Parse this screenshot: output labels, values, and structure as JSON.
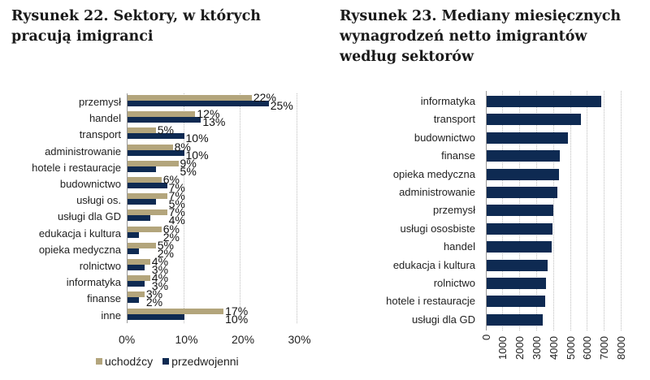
{
  "titles": {
    "left": "Rysunek 22. Sektory, w których pracują imigranci",
    "right": "Rysunek 23. Mediany miesięcznych wynagrodzeń netto imigrantów według sektorów"
  },
  "colors": {
    "uchodzcy": "#b3a57c",
    "przedwojenni": "#0e2a52",
    "right_bar": "#0e2a52",
    "grid": "#bdbdbd"
  },
  "legend": {
    "series1": "uchodźcy",
    "series2": "przedwojenni"
  },
  "chart_data": [
    {
      "type": "bar",
      "orientation": "horizontal",
      "title": "Rysunek 22. Sektory, w których pracują imigranci",
      "categories": [
        "przemysł",
        "handel",
        "transport",
        "administrowanie",
        "hotele i restauracje",
        "budownictwo",
        "usługi os.",
        "usługi dla GD",
        "edukacja i kultura",
        "opieka medyczna",
        "rolnictwo",
        "informatyka",
        "finanse",
        "inne"
      ],
      "series": [
        {
          "name": "uchodźcy",
          "values": [
            22,
            12,
            5,
            8,
            9,
            6,
            7,
            7,
            6,
            5,
            4,
            4,
            3,
            17
          ]
        },
        {
          "name": "przedwojenni",
          "values": [
            25,
            13,
            10,
            10,
            5,
            7,
            5,
            4,
            2,
            2,
            3,
            3,
            2,
            10
          ]
        }
      ],
      "xlabel": "",
      "ylabel": "",
      "xlim": [
        0,
        30
      ],
      "xticks": [
        "0%",
        "10%",
        "20%",
        "30%"
      ],
      "legend_position": "bottom",
      "grid": true
    },
    {
      "type": "bar",
      "orientation": "horizontal",
      "title": "Rysunek 23. Mediany miesięcznych wynagrodzeń netto imigrantów według sektorów",
      "categories": [
        "informatyka",
        "transport",
        "budownictwo",
        "finanse",
        "opieka medyczna",
        "administrowanie",
        "przemysł",
        "usługi ososbiste",
        "handel",
        "edukacja i kultura",
        "rolnictwo",
        "hotele i restauracje",
        "usługi dla GD"
      ],
      "values": [
        6800,
        5600,
        4850,
        4350,
        4300,
        4200,
        3950,
        3900,
        3850,
        3650,
        3550,
        3500,
        3350
      ],
      "xlabel": "",
      "ylabel": "",
      "xlim": [
        0,
        8000
      ],
      "xticks": [
        "0",
        "1000",
        "2000",
        "3000",
        "4000",
        "5000",
        "6000",
        "7000",
        "8000"
      ],
      "grid": true
    }
  ]
}
